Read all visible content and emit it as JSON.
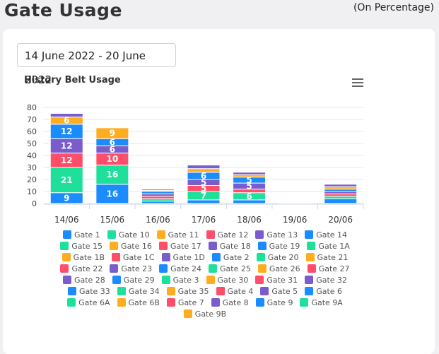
{
  "page": {
    "title": "Gate Usage",
    "note": "(On Percentage)"
  },
  "filter": {
    "date_range": "14 June 2022 - 20 June 2022"
  },
  "colors": {
    "blue": "#1a8cff",
    "green": "#1ee09a",
    "orange": "#ffad1f",
    "red": "#ff4d6a",
    "purple": "#7a5ccc"
  },
  "chart_data": {
    "type": "bar",
    "stacked": true,
    "title": "History Belt Usage",
    "xlabel": "",
    "ylabel": "",
    "ylim": [
      0,
      80
    ],
    "yticks": [
      0,
      10,
      20,
      30,
      40,
      50,
      60,
      70,
      80
    ],
    "grid": true,
    "legend_position": "bottom",
    "categories": [
      "14/06",
      "15/06",
      "16/06",
      "17/06",
      "18/06",
      "19/06",
      "20/06"
    ],
    "series": [
      {
        "name": "Gate 9",
        "color": "#1a8cff",
        "values": [
          9,
          16,
          2,
          3,
          3,
          0.5,
          4
        ],
        "labels": [
          "9",
          "16",
          "",
          "",
          "",
          "",
          ""
        ]
      },
      {
        "name": "Gate 3",
        "color": "#1ee09a",
        "values": [
          21,
          16,
          2,
          7,
          6,
          0.5,
          2
        ],
        "labels": [
          "21",
          "16",
          "",
          "7",
          "6",
          "",
          ""
        ]
      },
      {
        "name": "Gate 12",
        "color": "#ff4d6a",
        "values": [
          12,
          10,
          2,
          5,
          3,
          0.5,
          2
        ],
        "labels": [
          "12",
          "10",
          "",
          "5",
          "",
          "",
          ""
        ]
      },
      {
        "name": "Gate 13",
        "color": "#7a5ccc",
        "values": [
          12,
          6,
          2,
          5,
          5,
          0.5,
          2
        ],
        "labels": [
          "12",
          "6",
          "",
          "5",
          "5",
          "",
          ""
        ]
      },
      {
        "name": "Gate 19",
        "color": "#1a8cff",
        "values": [
          12,
          6,
          2,
          6,
          5,
          0,
          2
        ],
        "labels": [
          "12",
          "6",
          "",
          "6",
          "5",
          "",
          ""
        ]
      },
      {
        "name": "Gate 11",
        "color": "#ffad1f",
        "values": [
          6,
          9,
          1,
          3,
          2,
          0,
          2
        ],
        "labels": [
          "6",
          "9",
          "",
          "",
          "",
          "",
          ""
        ]
      },
      {
        "name": "Gate 18",
        "color": "#7a5ccc",
        "values": [
          3,
          0,
          1,
          3,
          2,
          0,
          2
        ],
        "labels": [
          "",
          "",
          "",
          "",
          "",
          "",
          ""
        ]
      }
    ],
    "legend": [
      [
        "Gate 1",
        "#1a8cff"
      ],
      [
        "Gate 10",
        "#1ee09a"
      ],
      [
        "Gate 11",
        "#ffad1f"
      ],
      [
        "Gate 12",
        "#ff4d6a"
      ],
      [
        "Gate 13",
        "#7a5ccc"
      ],
      [
        "Gate 14",
        "#1a8cff"
      ],
      [
        "Gate 15",
        "#1ee09a"
      ],
      [
        "Gate 16",
        "#ffad1f"
      ],
      [
        "Gate 17",
        "#ff4d6a"
      ],
      [
        "Gate 18",
        "#7a5ccc"
      ],
      [
        "Gate 19",
        "#1a8cff"
      ],
      [
        "Gate 1A",
        "#1ee09a"
      ],
      [
        "Gate 1B",
        "#ffad1f"
      ],
      [
        "Gate 1C",
        "#ff4d6a"
      ],
      [
        "Gate 1D",
        "#7a5ccc"
      ],
      [
        "Gate 2",
        "#1a8cff"
      ],
      [
        "Gate 20",
        "#1ee09a"
      ],
      [
        "Gate 21",
        "#ffad1f"
      ],
      [
        "Gate 22",
        "#ff4d6a"
      ],
      [
        "Gate 23",
        "#7a5ccc"
      ],
      [
        "Gate 24",
        "#1a8cff"
      ],
      [
        "Gate 25",
        "#1ee09a"
      ],
      [
        "Gate 26",
        "#ffad1f"
      ],
      [
        "Gate 27",
        "#ff4d6a"
      ],
      [
        "Gate 28",
        "#7a5ccc"
      ],
      [
        "Gate 29",
        "#1a8cff"
      ],
      [
        "Gate 3",
        "#1ee09a"
      ],
      [
        "Gate 30",
        "#ffad1f"
      ],
      [
        "Gate 31",
        "#ff4d6a"
      ],
      [
        "Gate 32",
        "#7a5ccc"
      ],
      [
        "Gate 33",
        "#1a8cff"
      ],
      [
        "Gate 34",
        "#1ee09a"
      ],
      [
        "Gate 35",
        "#ffad1f"
      ],
      [
        "Gate 4",
        "#ff4d6a"
      ],
      [
        "Gate 5",
        "#7a5ccc"
      ],
      [
        "Gate 6",
        "#1a8cff"
      ],
      [
        "Gate 6A",
        "#1ee09a"
      ],
      [
        "Gate 6B",
        "#ffad1f"
      ],
      [
        "Gate 7",
        "#ff4d6a"
      ],
      [
        "Gate 8",
        "#7a5ccc"
      ],
      [
        "Gate 9",
        "#1a8cff"
      ],
      [
        "Gate 9A",
        "#1ee09a"
      ],
      [
        "Gate 9B",
        "#ffad1f"
      ]
    ]
  }
}
